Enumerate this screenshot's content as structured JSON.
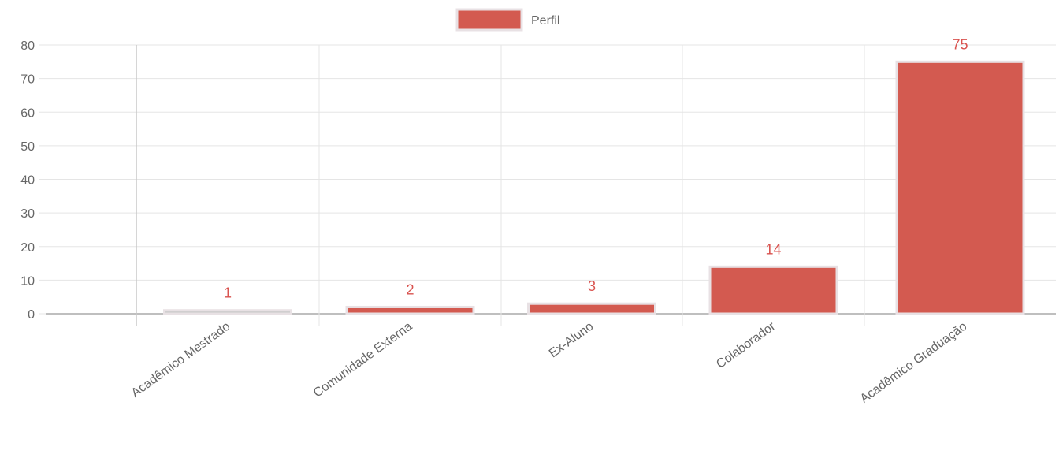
{
  "chart_data": {
    "type": "bar",
    "categories": [
      "",
      "Acadêmico Mestrado",
      "Comunidade Externa",
      "Ex-Aluno",
      "Colaborador",
      "Acadêmico Graduação"
    ],
    "series": [
      {
        "name": "Perfil",
        "values": [
          0,
          1,
          2,
          3,
          14,
          75
        ]
      }
    ],
    "data_labels": [
      "",
      "1",
      "2",
      "3",
      "14",
      "75"
    ],
    "ylim": [
      0,
      80
    ],
    "yticks": [
      0,
      10,
      20,
      30,
      40,
      50,
      60,
      70,
      80
    ],
    "grid": true,
    "legend": "top-center",
    "colors": {
      "bar_fill": "#d35a50",
      "bar_border": "#e8e1e4",
      "data_label": "#d9534f",
      "grid": "#e5e5e5",
      "axis": "#b0b0b0",
      "text": "#666666"
    }
  }
}
